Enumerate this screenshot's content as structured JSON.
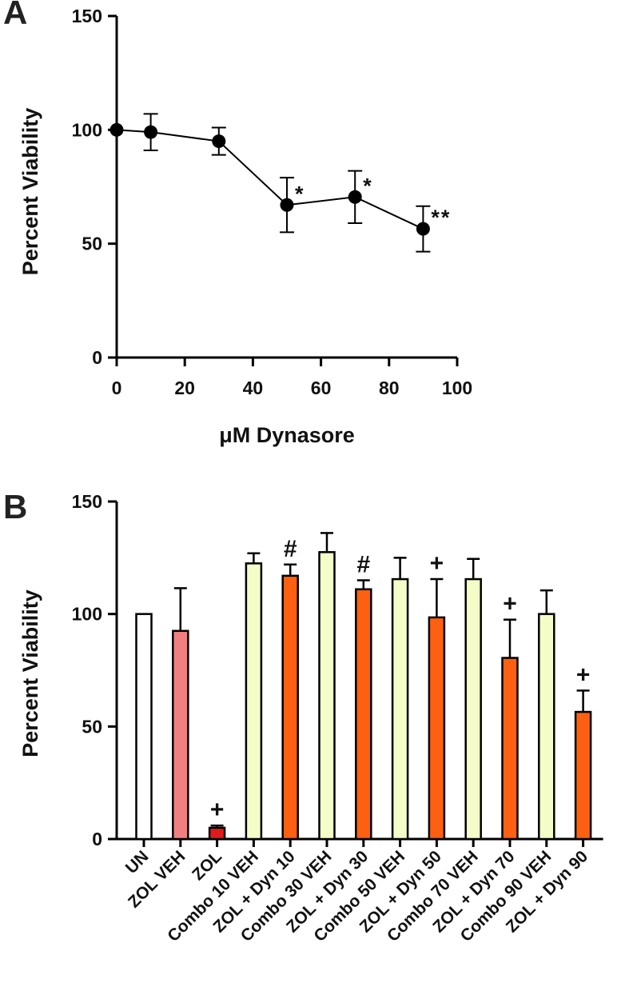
{
  "colors": {
    "axis": "#000000",
    "marker": "#000000",
    "bar_un": "#ffffff",
    "bar_zol_veh": "#f08080",
    "bar_zol": "#e21a1a",
    "bar_combo_veh": "#f4fcc8",
    "bar_zol_dyn": "#fc6010"
  },
  "chart_data": [
    {
      "panel": "A",
      "type": "line",
      "xlabel": "μM Dynasore",
      "ylabel": "Percent Viability",
      "xlim": [
        0,
        100
      ],
      "ylim": [
        0,
        150
      ],
      "xticks": [
        0,
        20,
        40,
        60,
        80,
        100
      ],
      "yticks": [
        0,
        50,
        100,
        150
      ],
      "xtick_labels": [
        "0",
        "20",
        "40",
        "60",
        "80",
        "100"
      ],
      "ytick_labels": [
        "0",
        "50",
        "100",
        "150"
      ],
      "x": [
        0,
        10,
        30,
        50,
        70,
        90
      ],
      "y": [
        100,
        99,
        95,
        67,
        70.5,
        56.5
      ],
      "error": [
        0,
        8,
        6,
        12,
        11.5,
        10
      ],
      "annotations": [
        "",
        "",
        "",
        "*",
        "*",
        "**"
      ]
    },
    {
      "panel": "B",
      "type": "bar",
      "ylabel": "Percent Viability",
      "ylim": [
        0,
        150
      ],
      "yticks": [
        0,
        50,
        100,
        150
      ],
      "ytick_labels": [
        "0",
        "50",
        "100",
        "150"
      ],
      "categories": [
        "UN",
        "ZOL VEH",
        "ZOL",
        "Combo 10 VEH",
        "ZOL + Dyn 10",
        "Combo 30 VEH",
        "ZOL + Dyn 30",
        "Combo 50 VEH",
        "ZOL + Dyn 50",
        "Combo 70 VEH",
        "ZOL + Dyn 70",
        "Combo 90 VEH",
        "ZOL + Dyn 90"
      ],
      "values": [
        100,
        92.5,
        5,
        122.5,
        117,
        127.5,
        111,
        115.5,
        98.5,
        115.5,
        80.5,
        100,
        56.5
      ],
      "error": [
        0,
        19,
        1,
        4.5,
        5,
        8.5,
        4,
        9.5,
        17,
        9,
        17,
        10.5,
        9.5
      ],
      "bar_color_keys": [
        "bar_un",
        "bar_zol_veh",
        "bar_zol",
        "bar_combo_veh",
        "bar_zol_dyn",
        "bar_combo_veh",
        "bar_zol_dyn",
        "bar_combo_veh",
        "bar_zol_dyn",
        "bar_combo_veh",
        "bar_zol_dyn",
        "bar_combo_veh",
        "bar_zol_dyn"
      ],
      "annotations": [
        "",
        "",
        "+",
        "",
        "#",
        "",
        "#",
        "",
        "+",
        "",
        "+",
        "",
        "+"
      ]
    }
  ]
}
